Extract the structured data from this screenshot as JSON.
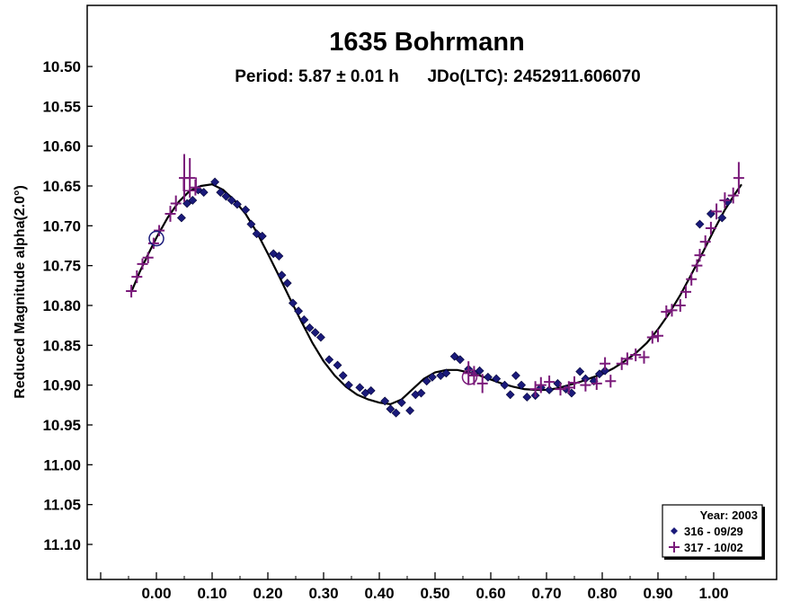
{
  "chart_data": {
    "type": "scatter",
    "title": "1635 Bohrmann",
    "subtitle": "Period: 5.87 ± 0.01 h      JDo(LTC): 2452911.606070",
    "xlabel": "",
    "ylabel": "Reduced Magnitude alpha(2.0°)",
    "xlim": [
      -0.125,
      1.075
    ],
    "ylim": [
      10.45,
      11.2
    ],
    "y_inverted": true,
    "grid": false,
    "x_ticks": [
      "0.00",
      "0.10",
      "0.20",
      "0.30",
      "0.40",
      "0.50",
      "0.60",
      "0.70",
      "0.80",
      "0.90",
      "1.00"
    ],
    "y_ticks": [
      "10.50",
      "10.55",
      "10.60",
      "10.65",
      "10.70",
      "10.75",
      "10.80",
      "10.85",
      "10.90",
      "10.95",
      "11.00",
      "11.05",
      "11.10"
    ],
    "legend": {
      "placement": "bottom-right",
      "title": "Year: 2003",
      "entries": [
        "316 - 09/29",
        "317 - 10/02"
      ]
    },
    "colors": {
      "series1": "#1a1a7a",
      "series2": "#7a1a7a",
      "fit": "#000000"
    },
    "series": [
      {
        "name": "316 - 09/29",
        "marker": "diamond",
        "color": "#1a1a7a",
        "points": [
          [
            0.045,
            10.69
          ],
          [
            0.055,
            10.672
          ],
          [
            0.065,
            10.668
          ],
          [
            0.075,
            10.655
          ],
          [
            0.085,
            10.658
          ],
          [
            0.105,
            10.645
          ],
          [
            0.115,
            10.658
          ],
          [
            0.125,
            10.663
          ],
          [
            0.135,
            10.668
          ],
          [
            0.145,
            10.673
          ],
          [
            0.16,
            10.68
          ],
          [
            0.17,
            10.698
          ],
          [
            0.18,
            10.71
          ],
          [
            0.19,
            10.713
          ],
          [
            0.21,
            10.735
          ],
          [
            0.22,
            10.738
          ],
          [
            0.225,
            10.762
          ],
          [
            0.235,
            10.772
          ],
          [
            0.245,
            10.797
          ],
          [
            0.255,
            10.807
          ],
          [
            0.265,
            10.818
          ],
          [
            0.275,
            10.828
          ],
          [
            0.285,
            10.834
          ],
          [
            0.295,
            10.84
          ],
          [
            0.31,
            10.868
          ],
          [
            0.325,
            10.875
          ],
          [
            0.335,
            10.888
          ],
          [
            0.345,
            10.9
          ],
          [
            0.365,
            10.903
          ],
          [
            0.375,
            10.91
          ],
          [
            0.385,
            10.907
          ],
          [
            0.41,
            10.92
          ],
          [
            0.42,
            10.93
          ],
          [
            0.43,
            10.935
          ],
          [
            0.44,
            10.922
          ],
          [
            0.455,
            10.932
          ],
          [
            0.465,
            10.912
          ],
          [
            0.475,
            10.91
          ],
          [
            0.485,
            10.895
          ],
          [
            0.495,
            10.89
          ],
          [
            0.51,
            10.888
          ],
          [
            0.52,
            10.885
          ],
          [
            0.535,
            10.864
          ],
          [
            0.545,
            10.868
          ],
          [
            0.56,
            10.88
          ],
          [
            0.57,
            10.885
          ],
          [
            0.58,
            10.882
          ],
          [
            0.595,
            10.89
          ],
          [
            0.61,
            10.892
          ],
          [
            0.625,
            10.9
          ],
          [
            0.635,
            10.912
          ],
          [
            0.645,
            10.888
          ],
          [
            0.655,
            10.9
          ],
          [
            0.665,
            10.915
          ],
          [
            0.68,
            10.913
          ],
          [
            0.69,
            10.903
          ],
          [
            0.705,
            10.906
          ],
          [
            0.72,
            10.898
          ],
          [
            0.735,
            10.905
          ],
          [
            0.745,
            10.91
          ],
          [
            0.76,
            10.883
          ],
          [
            0.77,
            10.892
          ],
          [
            0.785,
            10.895
          ],
          [
            0.795,
            10.886
          ],
          [
            0.805,
            10.882
          ],
          [
            0.975,
            10.698
          ],
          [
            0.995,
            10.685
          ],
          [
            1.015,
            10.69
          ],
          [
            1.025,
            10.67
          ]
        ]
      },
      {
        "name": "317 - 10/02",
        "marker": "plus",
        "color": "#7a1a7a",
        "points": [
          [
            -0.045,
            10.782,
            0.008
          ],
          [
            -0.035,
            10.764,
            0.008
          ],
          [
            -0.025,
            10.748,
            0.007
          ],
          [
            -0.015,
            10.74,
            0.007
          ],
          [
            -0.005,
            10.722,
            0.007
          ],
          [
            0.005,
            10.706,
            0.007
          ],
          [
            0.025,
            10.685,
            0.01
          ],
          [
            0.035,
            10.672,
            0.01
          ],
          [
            0.05,
            10.64,
            0.03
          ],
          [
            0.06,
            10.64,
            0.025
          ],
          [
            0.07,
            10.652,
            0.01
          ],
          [
            0.56,
            10.885,
            0.015
          ],
          [
            0.57,
            10.888,
            0.012
          ],
          [
            0.585,
            10.898,
            0.012
          ],
          [
            0.68,
            10.905,
            0.01
          ],
          [
            0.69,
            10.9,
            0.01
          ],
          [
            0.705,
            10.896,
            0.008
          ],
          [
            0.725,
            10.905,
            0.008
          ],
          [
            0.74,
            10.903,
            0.008
          ],
          [
            0.75,
            10.897,
            0.008
          ],
          [
            0.77,
            10.9,
            0.008
          ],
          [
            0.79,
            10.898,
            0.008
          ],
          [
            0.805,
            10.873,
            0.008
          ],
          [
            0.815,
            10.895,
            0.008
          ],
          [
            0.835,
            10.873,
            0.008
          ],
          [
            0.845,
            10.867,
            0.008
          ],
          [
            0.86,
            10.862,
            0.008
          ],
          [
            0.875,
            10.865,
            0.008
          ],
          [
            0.89,
            10.84,
            0.008
          ],
          [
            0.9,
            10.838,
            0.008
          ],
          [
            0.915,
            10.808,
            0.008
          ],
          [
            0.925,
            10.806,
            0.008
          ],
          [
            0.94,
            10.8,
            0.008
          ],
          [
            0.95,
            10.783,
            0.008
          ],
          [
            0.96,
            10.767,
            0.008
          ],
          [
            0.97,
            10.75,
            0.008
          ],
          [
            0.975,
            10.737,
            0.008
          ],
          [
            0.985,
            10.72,
            0.008
          ],
          [
            0.995,
            10.703,
            0.008
          ],
          [
            1.005,
            10.682,
            0.01
          ],
          [
            1.02,
            10.668,
            0.01
          ],
          [
            1.035,
            10.662,
            0.01
          ],
          [
            1.045,
            10.64,
            0.02
          ]
        ]
      }
    ],
    "fit_curve": [
      [
        -0.045,
        10.783
      ],
      [
        -0.03,
        10.758
      ],
      [
        -0.015,
        10.736
      ],
      [
        0.0,
        10.715
      ],
      [
        0.02,
        10.69
      ],
      [
        0.04,
        10.67
      ],
      [
        0.06,
        10.656
      ],
      [
        0.08,
        10.65
      ],
      [
        0.1,
        10.648
      ],
      [
        0.12,
        10.655
      ],
      [
        0.14,
        10.668
      ],
      [
        0.16,
        10.685
      ],
      [
        0.18,
        10.708
      ],
      [
        0.2,
        10.735
      ],
      [
        0.22,
        10.763
      ],
      [
        0.24,
        10.792
      ],
      [
        0.26,
        10.82
      ],
      [
        0.28,
        10.847
      ],
      [
        0.3,
        10.87
      ],
      [
        0.32,
        10.888
      ],
      [
        0.34,
        10.902
      ],
      [
        0.36,
        10.912
      ],
      [
        0.38,
        10.918
      ],
      [
        0.4,
        10.922
      ],
      [
        0.42,
        10.924
      ],
      [
        0.44,
        10.918
      ],
      [
        0.46,
        10.905
      ],
      [
        0.48,
        10.892
      ],
      [
        0.5,
        10.884
      ],
      [
        0.52,
        10.881
      ],
      [
        0.54,
        10.881
      ],
      [
        0.56,
        10.884
      ],
      [
        0.58,
        10.888
      ],
      [
        0.6,
        10.893
      ],
      [
        0.62,
        10.898
      ],
      [
        0.64,
        10.902
      ],
      [
        0.66,
        10.905
      ],
      [
        0.68,
        10.906
      ],
      [
        0.7,
        10.906
      ],
      [
        0.72,
        10.904
      ],
      [
        0.74,
        10.9
      ],
      [
        0.76,
        10.896
      ],
      [
        0.78,
        10.891
      ],
      [
        0.8,
        10.886
      ],
      [
        0.82,
        10.879
      ],
      [
        0.84,
        10.87
      ],
      [
        0.86,
        10.86
      ],
      [
        0.88,
        10.847
      ],
      [
        0.9,
        10.83
      ],
      [
        0.92,
        10.81
      ],
      [
        0.94,
        10.787
      ],
      [
        0.96,
        10.761
      ],
      [
        0.98,
        10.734
      ],
      [
        1.0,
        10.706
      ],
      [
        1.02,
        10.68
      ],
      [
        1.04,
        10.658
      ],
      [
        1.05,
        10.648
      ]
    ],
    "open_circles": [
      {
        "series": "316 - 09/29",
        "point": [
          0.0,
          10.716
        ]
      },
      {
        "series": "317 - 10/02",
        "point": [
          0.562,
          10.89
        ]
      }
    ],
    "open_squares": [
      {
        "series": "317 - 10/02",
        "point": [
          0.06,
          10.648
        ]
      }
    ]
  }
}
